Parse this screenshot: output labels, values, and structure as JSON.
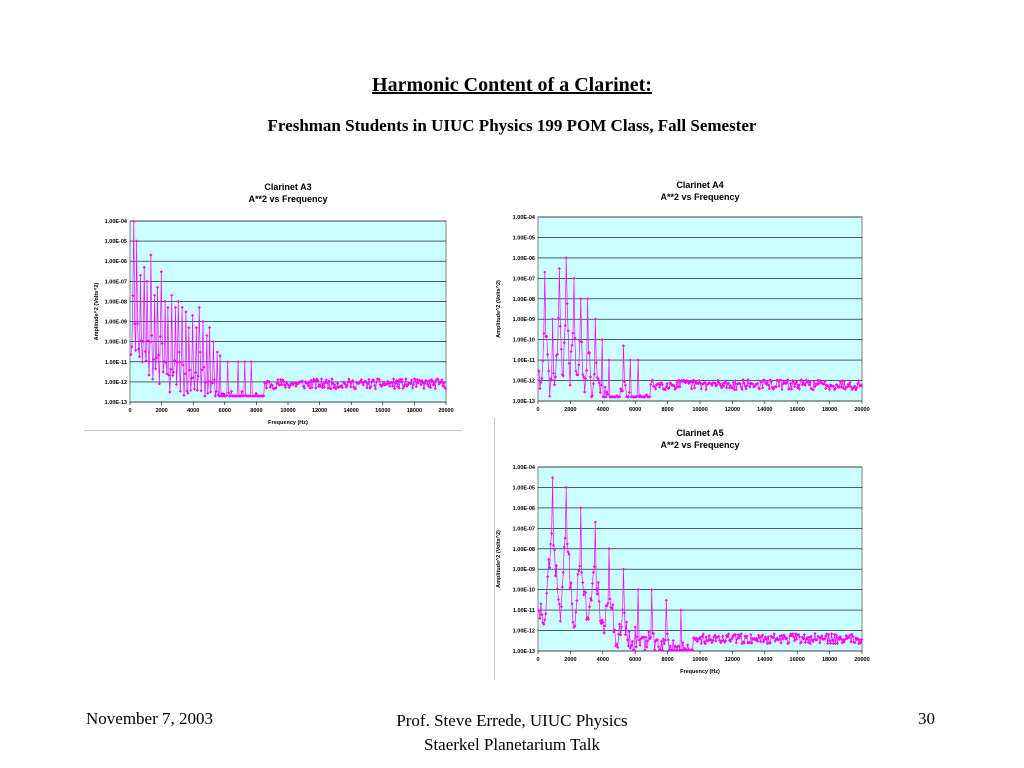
{
  "slide": {
    "title": "Harmonic Content of a Clarinet:",
    "subtitle": "Freshman Students in UIUC Physics 199 POM Class, Fall Semester"
  },
  "footer": {
    "left": "November 7, 2003",
    "center_line1": "Prof. Steve Errede, UIUC Physics",
    "center_line2": "Staerkel Planetarium Talk",
    "right": "30"
  },
  "colors": {
    "plot_background": "#ccffff",
    "series": "#ff00ff",
    "gridline": "#000000"
  },
  "chart_data": [
    {
      "id": "a3",
      "type": "line",
      "title": "Clarinet A3",
      "subtitle": "A**2 vs Frequency",
      "xlabel": "Frequency (Hz)",
      "ylabel": "Amplitude^2 (Volts^2)",
      "xlim": [
        0,
        20000
      ],
      "x_ticks": [
        0,
        2000,
        4000,
        6000,
        8000,
        10000,
        12000,
        14000,
        16000,
        18000,
        20000
      ],
      "y_log_range": [
        -13,
        -4
      ],
      "y_ticks": [
        "1.00E-04",
        "1.00E-05",
        "1.00E-06",
        "1.00E-07",
        "1.00E-08",
        "1.00E-09",
        "1.00E-10",
        "1.00E-11",
        "1.00E-12",
        "1.00E-13"
      ],
      "grid": "horizontal",
      "marker": "diamond",
      "fundamental_hz": 220,
      "noise_floor_exp": -12.1,
      "peaks": [
        {
          "x": 220,
          "y": 0.0001
        },
        {
          "x": 440,
          "y": 1e-05
        },
        {
          "x": 660,
          "y": 2e-07
        },
        {
          "x": 880,
          "y": 5e-07
        },
        {
          "x": 1100,
          "y": 1e-07
        },
        {
          "x": 1320,
          "y": 2e-06
        },
        {
          "x": 1540,
          "y": 2e-08
        },
        {
          "x": 1760,
          "y": 5e-08
        },
        {
          "x": 1980,
          "y": 3e-07
        },
        {
          "x": 2200,
          "y": 1e-08
        },
        {
          "x": 2420,
          "y": 5e-09
        },
        {
          "x": 2640,
          "y": 2e-08
        },
        {
          "x": 2860,
          "y": 5e-09
        },
        {
          "x": 3080,
          "y": 1e-08
        },
        {
          "x": 3300,
          "y": 5e-09
        },
        {
          "x": 3520,
          "y": 3e-09
        },
        {
          "x": 3740,
          "y": 5e-10
        },
        {
          "x": 3960,
          "y": 2e-09
        },
        {
          "x": 4180,
          "y": 5e-10
        },
        {
          "x": 4400,
          "y": 5e-09
        },
        {
          "x": 4620,
          "y": 1e-09
        },
        {
          "x": 4840,
          "y": 2e-10
        },
        {
          "x": 5060,
          "y": 5e-10
        },
        {
          "x": 5280,
          "y": 1e-10
        },
        {
          "x": 5500,
          "y": 3e-11
        },
        {
          "x": 5720,
          "y": 2e-11
        },
        {
          "x": 6160,
          "y": 1e-11
        },
        {
          "x": 6820,
          "y": 1e-11
        },
        {
          "x": 7260,
          "y": 1e-11
        },
        {
          "x": 7700,
          "y": 1e-11
        }
      ]
    },
    {
      "id": "a4",
      "type": "line",
      "title": "Clarinet A4",
      "subtitle": "A**2 vs Frequency",
      "xlabel": "",
      "ylabel": "Amplitude^2 (Volts^2)",
      "xlim": [
        0,
        20000
      ],
      "x_ticks": [
        0,
        2000,
        4000,
        6000,
        8000,
        10000,
        12000,
        14000,
        16000,
        18000,
        20000
      ],
      "y_log_range": [
        -13,
        -4
      ],
      "y_ticks": [
        "1.00E-04",
        "1.00E-05",
        "1.00E-06",
        "1.00E-07",
        "1.00E-08",
        "1.00E-09",
        "1.00E-10",
        "1.00E-11",
        "1.00E-12",
        "1.00E-13"
      ],
      "grid": "horizontal",
      "marker": "diamond",
      "fundamental_hz": 440,
      "noise_floor_exp": -12.2,
      "peaks": [
        {
          "x": 440,
          "y": 2e-07
        },
        {
          "x": 880,
          "y": 1e-09
        },
        {
          "x": 1320,
          "y": 3e-07
        },
        {
          "x": 1760,
          "y": 1e-06
        },
        {
          "x": 2200,
          "y": 1e-07
        },
        {
          "x": 2640,
          "y": 1e-08
        },
        {
          "x": 3080,
          "y": 1e-08
        },
        {
          "x": 3520,
          "y": 1e-09
        },
        {
          "x": 3960,
          "y": 1e-10
        },
        {
          "x": 4400,
          "y": 1e-11
        },
        {
          "x": 5280,
          "y": 5e-11
        },
        {
          "x": 5720,
          "y": 1e-11
        },
        {
          "x": 6160,
          "y": 1e-11
        }
      ]
    },
    {
      "id": "a5",
      "type": "line",
      "title": "Clarinet A5",
      "subtitle": "A**2 vs Frequency",
      "xlabel": "Frequency (Hz)",
      "ylabel": "Amplitude^2 (Volts^2)",
      "xlim": [
        0,
        20000
      ],
      "x_ticks": [
        0,
        2000,
        4000,
        6000,
        8000,
        10000,
        12000,
        14000,
        16000,
        18000,
        20000
      ],
      "y_log_range": [
        -13,
        -4
      ],
      "y_ticks": [
        "1.00E-04",
        "1.00E-05",
        "1.00E-06",
        "1.00E-07",
        "1.00E-08",
        "1.00E-09",
        "1.00E-10",
        "1.00E-11",
        "1.00E-12",
        "1.00E-13"
      ],
      "grid": "horizontal",
      "marker": "diamond",
      "fundamental_hz": 880,
      "noise_floor_exp": -12.4,
      "peaks": [
        {
          "x": 880,
          "y": 3e-05
        },
        {
          "x": 1760,
          "y": 1e-05
        },
        {
          "x": 2640,
          "y": 1e-06
        },
        {
          "x": 3520,
          "y": 2e-07
        },
        {
          "x": 4400,
          "y": 1e-08
        },
        {
          "x": 5280,
          "y": 1e-09
        },
        {
          "x": 6160,
          "y": 1e-10
        },
        {
          "x": 7040,
          "y": 1e-10
        },
        {
          "x": 7920,
          "y": 3e-11
        },
        {
          "x": 8800,
          "y": 1e-11
        }
      ]
    }
  ]
}
